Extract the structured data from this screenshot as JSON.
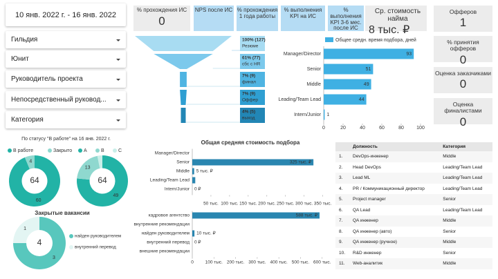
{
  "filters": {
    "date": "10 янв. 2022 г. - 16 янв. 2022",
    "dropdowns": [
      "Гильдия",
      "Юнит",
      "Руководитель проекта",
      "Непосредственный руковод...",
      "Категория"
    ]
  },
  "kpis": [
    {
      "label": "% прохождения ИС",
      "value": 0,
      "color": "#ececec"
    },
    {
      "label": "NPS после ИС",
      "color": "#b5dcf4"
    },
    {
      "label": "% прохождения 1 года работы",
      "color": "#b5dcf4"
    },
    {
      "label": "% выполнения KPI на ИС",
      "color": "#b5dcf4"
    },
    {
      "label": "% выполнения KPI 3-6 мес. после ИС",
      "color": "#b5dcf4"
    },
    {
      "label": "Ср. стоимость найма",
      "value": "8 тыс. ₽",
      "color": "#ececec"
    }
  ],
  "side_kpis": [
    {
      "label": "Офферов",
      "value": 1
    },
    {
      "label": "% принятия офферов",
      "value": 0
    },
    {
      "label": "Оценка заказчиками",
      "value": 0
    },
    {
      "label": "Оценка финалистами",
      "value": 0
    }
  ],
  "status_title": "По статусу \"В работе\" на 16 янв. 2022 г.",
  "chart_data": [
    {
      "type": "pie",
      "categories": [
        "В работе",
        "Закрыто"
      ],
      "values": [
        60,
        4
      ],
      "colors": [
        "#22b3a6",
        "#8fd8cf"
      ],
      "total": 64
    },
    {
      "type": "pie",
      "categories": [
        "A",
        "B",
        "C"
      ],
      "values": [
        49,
        13,
        2
      ],
      "colors": [
        "#22b3a6",
        "#8fd8cf",
        "#c9efe9"
      ],
      "total": 64
    },
    {
      "type": "pie",
      "title": "Закрытые вакансии",
      "categories": [
        "найден руководителем",
        "внутренний перевод"
      ],
      "values": [
        3,
        1
      ],
      "colors": [
        "#58c7bd",
        "#e3f5f3"
      ],
      "total": 4
    },
    {
      "type": "funnel",
      "categories": [
        "Резюме",
        "сбс с HR",
        "финал",
        "Оффер",
        "выход"
      ],
      "values": [
        100,
        61,
        7,
        7,
        4
      ],
      "value_labels": [
        "100% (127)",
        "61% (77)",
        "7% (9)",
        "7% (9)",
        "4% (5)"
      ],
      "colors": [
        "#a8dcf2",
        "#7cc9ec",
        "#4fb4e2",
        "#2f9fd2",
        "#2286b5"
      ]
    },
    {
      "type": "hbar",
      "legend": "Общее средн. время подбора, дней",
      "categories": [
        "Manager/Director",
        "Senior",
        "Middle",
        "Leading/Team Lead",
        "Intern/Junior"
      ],
      "values": [
        93,
        51,
        49,
        44,
        1
      ],
      "color": "#3fb0e3",
      "xlim": [
        0,
        100
      ],
      "xticks": [
        0,
        20,
        40,
        60,
        80,
        100
      ]
    },
    {
      "type": "hbar",
      "title": "Общая средняя стоимость подбора",
      "categories": [
        "Manager/Director",
        "Senior",
        "Middle",
        "Leading/Team Lead",
        "Intern/Junior"
      ],
      "values": [
        null,
        325000,
        5000,
        8000,
        0
      ],
      "value_labels": [
        null,
        "325 тыс. ₽",
        "5 тыс. ₽",
        null,
        "0 ₽"
      ],
      "color": "#2a86b0",
      "xlim": [
        0,
        360000
      ],
      "xticks": [
        {
          "value": 50000,
          "label": "50 тыс."
        },
        {
          "value": 100000,
          "label": "100 тыс."
        },
        {
          "value": 150000,
          "label": "150 тыс."
        },
        {
          "value": 200000,
          "label": "200 тыс."
        },
        {
          "value": 250000,
          "label": "250 тыс."
        },
        {
          "value": 300000,
          "label": "300 тыс."
        },
        {
          "value": 350000,
          "label": "350 тыс."
        }
      ]
    },
    {
      "type": "hbar",
      "categories": [
        "кадровое агентство",
        "внутренние рекомендации",
        "найден руководителем",
        "внутренний перевод",
        "внешние рекомендации"
      ],
      "values": [
        588000,
        null,
        10000,
        0,
        null
      ],
      "value_labels": [
        "588 тыс. ₽",
        null,
        "10 тыс. ₽",
        "0 ₽",
        null
      ],
      "color": "#2a86b0",
      "xlim": [
        0,
        620000
      ],
      "xticks": [
        0,
        {
          "value": 100000,
          "label": "100 тыс."
        },
        {
          "value": 200000,
          "label": "200 тыс."
        },
        {
          "value": 300000,
          "label": "300 тыс."
        },
        {
          "value": 400000,
          "label": "400 тыс."
        },
        {
          "value": 500000,
          "label": "500 тыс."
        },
        {
          "value": 600000,
          "label": "600 тыс."
        }
      ]
    }
  ],
  "table": {
    "headers": [
      "Должность",
      "Категория"
    ],
    "rows": [
      [
        "1.",
        "DevOps-инженер",
        "Middle"
      ],
      [
        "2.",
        "Head DevOps",
        "Leading/Team Lead"
      ],
      [
        "3.",
        "Lead ML",
        "Leading/Team Lead"
      ],
      [
        "4.",
        "PR / Коммуникационный директор",
        "Leading/Team Lead"
      ],
      [
        "5.",
        "Project manager",
        "Senior"
      ],
      [
        "6.",
        "QA Lead",
        "Leading/Team Lead"
      ],
      [
        "7.",
        "QA инженер",
        "Middle"
      ],
      [
        "8.",
        "QA инженер (авто)",
        "Senior"
      ],
      [
        "9.",
        "QA инженер (ручное)",
        "Middle"
      ],
      [
        "10.",
        "R&D инженер",
        "Senior"
      ],
      [
        "11.",
        "Web-аналитик",
        "Middle"
      ]
    ]
  }
}
